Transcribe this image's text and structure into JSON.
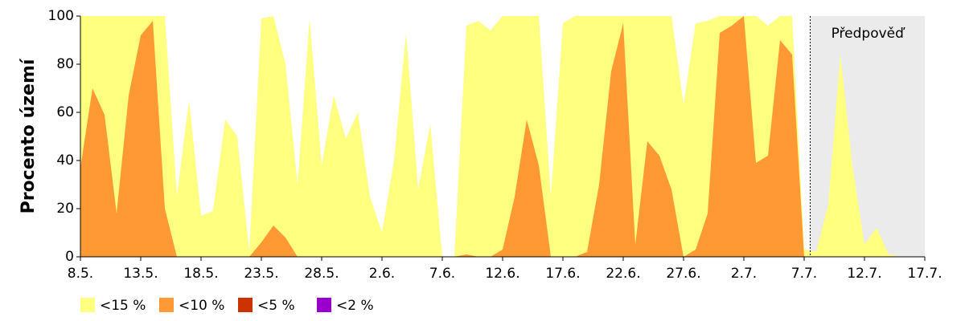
{
  "chart_data": {
    "type": "area",
    "y_label": "Procento území",
    "categories": [
      "8.5.",
      null,
      null,
      null,
      null,
      "13.5.",
      null,
      null,
      null,
      null,
      "18.5.",
      null,
      null,
      null,
      null,
      "23.5.",
      null,
      null,
      null,
      null,
      "28.5.",
      null,
      null,
      null,
      null,
      "2.6.",
      null,
      null,
      null,
      null,
      "7.6.",
      null,
      null,
      null,
      null,
      "12.6.",
      null,
      null,
      null,
      null,
      "17.6.",
      null,
      null,
      null,
      null,
      "22.6.",
      null,
      null,
      null,
      null,
      "27.6.",
      null,
      null,
      null,
      null,
      "2.7.",
      null,
      null,
      null,
      null,
      "7.7.",
      null,
      null,
      null,
      null,
      "12.7.",
      null,
      null,
      null,
      null,
      "17.7."
    ],
    "series": [
      {
        "name": "<15 %",
        "color": "#ffff80",
        "values": [
          100,
          100,
          100,
          100,
          100,
          100,
          100,
          100,
          25,
          65,
          17,
          19,
          57,
          50,
          2,
          99,
          100,
          80,
          30,
          99,
          38,
          67,
          49,
          60,
          25,
          10,
          40,
          93,
          28,
          55,
          0,
          0,
          96,
          98,
          94,
          100,
          100,
          100,
          100,
          25,
          97,
          100,
          100,
          100,
          100,
          100,
          100,
          100,
          100,
          100,
          63,
          97,
          98,
          100,
          100,
          100,
          100,
          96,
          100,
          100,
          3,
          2,
          22,
          84,
          38,
          5,
          12,
          1,
          0,
          0,
          0
        ]
      },
      {
        "name": "<10 %",
        "color": "#ff9933",
        "values": [
          37,
          70,
          59,
          18,
          67,
          92,
          98,
          20,
          0,
          0,
          0,
          0,
          0,
          0,
          0,
          6,
          13,
          8,
          0,
          0,
          0,
          0,
          0,
          0,
          0,
          0,
          0,
          0,
          0,
          0,
          0,
          0,
          1,
          0,
          0,
          3,
          25,
          57,
          38,
          0,
          0,
          0,
          2,
          30,
          77,
          97,
          5,
          48,
          42,
          28,
          0,
          3,
          18,
          93,
          96,
          100,
          39,
          42,
          90,
          84,
          0,
          0,
          0,
          0,
          0,
          0,
          0,
          0,
          0,
          0,
          0
        ]
      },
      {
        "name": "<5 %",
        "color": "#cc3300",
        "values": [
          0,
          0,
          0,
          0,
          0,
          0,
          0,
          0,
          0,
          0,
          0,
          0,
          0,
          0,
          0,
          0,
          0,
          0,
          0,
          0,
          0,
          0,
          0,
          0,
          0,
          0,
          0,
          0,
          0,
          0,
          0,
          0,
          0,
          0,
          0,
          0,
          0,
          0,
          0,
          0,
          0,
          0,
          0,
          0,
          0,
          0,
          0,
          0,
          0,
          0,
          0,
          0,
          0,
          0,
          0,
          0,
          0,
          0,
          0,
          0,
          0,
          0,
          0,
          0,
          0,
          0,
          0,
          0,
          0,
          0,
          0
        ]
      },
      {
        "name": "<2 %",
        "color": "#9900cc",
        "values": [
          0,
          0,
          0,
          0,
          0,
          0,
          0,
          0,
          0,
          0,
          0,
          0,
          0,
          0,
          0,
          0,
          0,
          0,
          0,
          0,
          0,
          0,
          0,
          0,
          0,
          0,
          0,
          0,
          0,
          0,
          0,
          0,
          0,
          0,
          0,
          0,
          0,
          0,
          0,
          0,
          0,
          0,
          0,
          0,
          0,
          0,
          0,
          0,
          0,
          0,
          0,
          0,
          0,
          0,
          0,
          0,
          0,
          0,
          0,
          0,
          0,
          0,
          0,
          0,
          0,
          0,
          0,
          0,
          0,
          0,
          0
        ]
      }
    ],
    "ylim": [
      0,
      100
    ],
    "yticks": [
      0,
      20,
      40,
      60,
      80,
      100
    ],
    "forecast": {
      "text": "Předpověď",
      "x": 60.5,
      "color": "#ebebeb"
    }
  }
}
